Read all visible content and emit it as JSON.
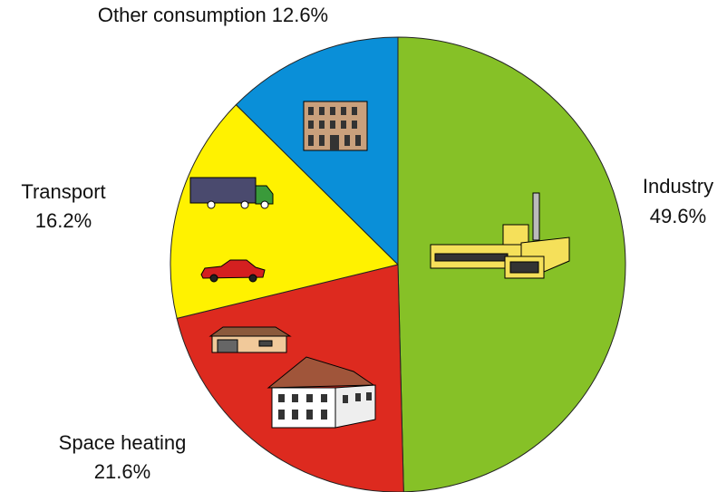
{
  "chart_data": {
    "type": "pie",
    "categories": [
      "Industry",
      "Space heating",
      "Transport",
      "Other consumption"
    ],
    "values": [
      49.6,
      21.6,
      16.2,
      12.6
    ],
    "value_labels": [
      "49.6%",
      "21.6%",
      "16.2%",
      "12.6%"
    ],
    "colors": [
      "#86c127",
      "#dd2a1f",
      "#fff200",
      "#0a8fd8"
    ],
    "start_angle": 0,
    "direction": "clockwise"
  }
}
